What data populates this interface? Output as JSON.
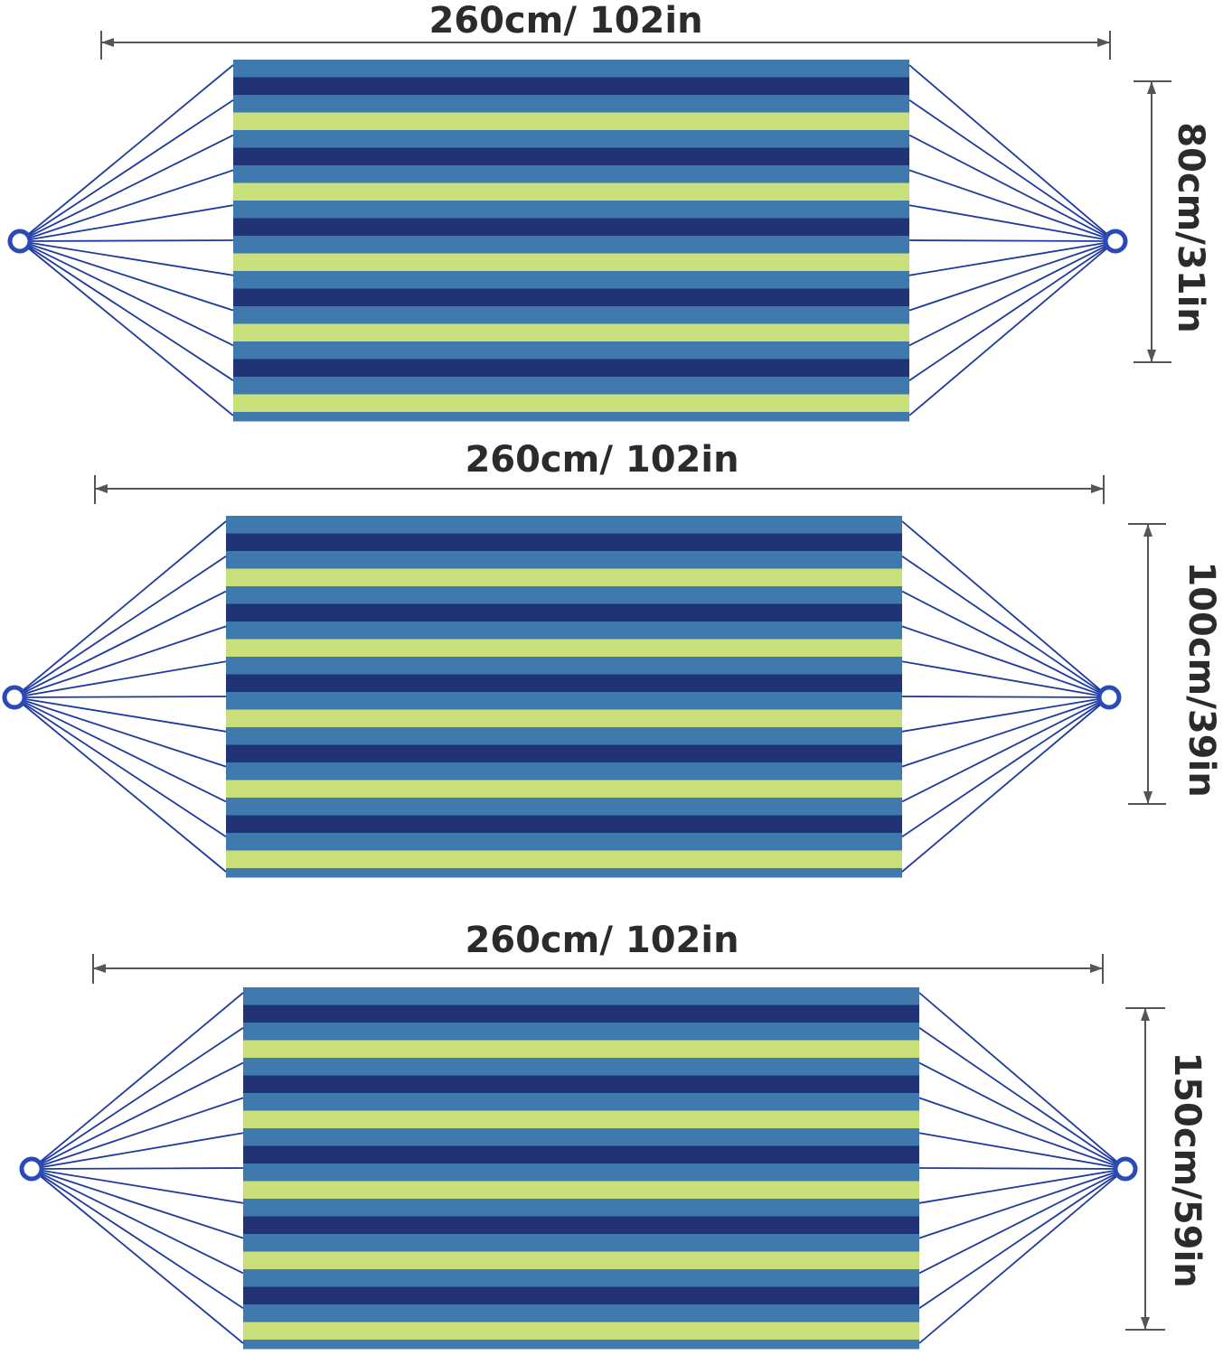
{
  "colors": {
    "navy": "#223276",
    "steel_blue": "#3f79ad",
    "lime": "#c9e07a",
    "rope": "#1f3a9e",
    "ring": "#2a4ab8"
  },
  "stripe_pattern": [
    "steel_blue",
    "navy",
    "steel_blue",
    "lime"
  ],
  "hammocks": [
    {
      "length_label": "260cm/ 102in",
      "width_label": "80cm/31in"
    },
    {
      "length_label": "260cm/ 102in",
      "width_label": "100cm/39in"
    },
    {
      "length_label": "260cm/ 102in",
      "width_label": "150cm/59in"
    }
  ]
}
